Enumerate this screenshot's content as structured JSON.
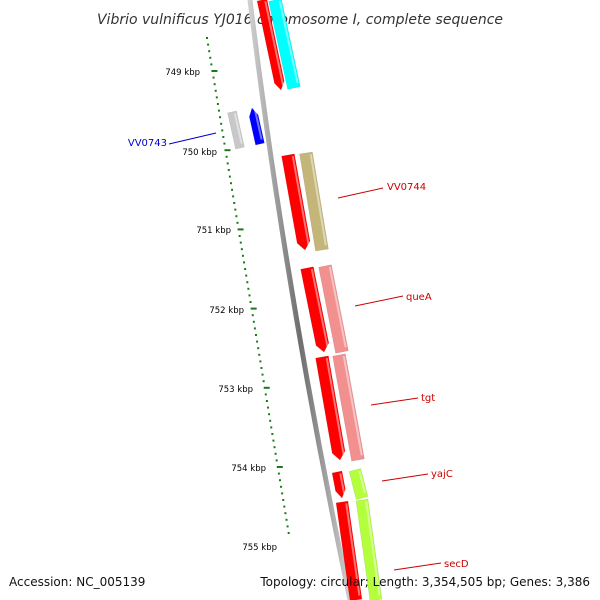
{
  "map": {
    "title": "Vibrio vulnificus YJ016 chromosome I, complete sequence",
    "accession": "Accession: NC_005139",
    "topology": "Topology: circular; Length: 3,354,505 bp; Genes: 3,386",
    "colors": {
      "backbone": "#8a8a8a",
      "tick": "#1a7a1a",
      "red": "#ff0000",
      "cyan": "#00ffff",
      "olive": "#c4b579",
      "salmon": "#f29090",
      "lime": "#b4ff3c",
      "grey": "#c8c8c8",
      "blue": "#0000ff",
      "label_red": "#cc0000",
      "label_blue": "#0000cc"
    },
    "scale_labels": [
      "749 kbp",
      "750 kbp",
      "751 kbp",
      "752 kbp",
      "753 kbp",
      "754 kbp",
      "755 kbp"
    ],
    "gene_labels": [
      {
        "text": "VV0743",
        "color": "blue"
      },
      {
        "text": "VV0744",
        "color": "red"
      },
      {
        "text": "queA",
        "color": "red"
      },
      {
        "text": "tgt",
        "color": "red"
      },
      {
        "text": "yajC",
        "color": "red"
      },
      {
        "text": "secD",
        "color": "red"
      }
    ]
  }
}
